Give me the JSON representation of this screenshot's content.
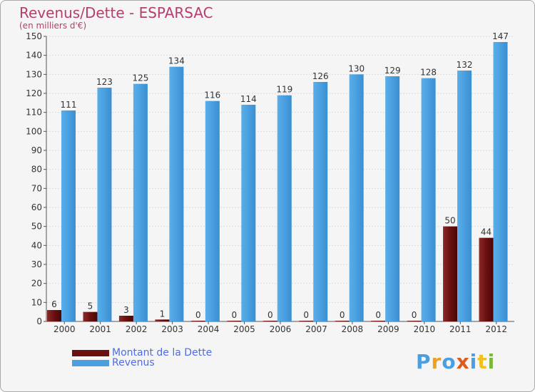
{
  "chart_data": {
    "type": "bar",
    "title": "Revenus/Dette - ESPARSAC",
    "subtitle": "(en milliers d'€)",
    "categories": [
      "2000",
      "2001",
      "2002",
      "2003",
      "2004",
      "2005",
      "2006",
      "2007",
      "2008",
      "2009",
      "2010",
      "2011",
      "2012"
    ],
    "series": [
      {
        "name": "Montant de la Dette",
        "values": [
          6,
          5,
          3,
          1,
          0,
          0,
          0,
          0,
          0,
          0,
          0,
          50,
          44
        ],
        "color": "#7a1c1c"
      },
      {
        "name": "Revenus",
        "values": [
          111,
          123,
          125,
          134,
          116,
          114,
          119,
          126,
          130,
          129,
          128,
          132,
          147
        ],
        "color": "#4a9fe0"
      }
    ],
    "ylim": [
      0,
      150
    ],
    "yticks": [
      0,
      10,
      20,
      30,
      40,
      50,
      60,
      70,
      80,
      90,
      100,
      110,
      120,
      130,
      140,
      150
    ],
    "grid": true,
    "legend_position": "bottom-left"
  },
  "logo": {
    "letters": [
      "P",
      "r",
      "o",
      "x",
      "i",
      "t",
      "i"
    ],
    "colors": [
      "#4a9fe0",
      "#f0a020",
      "#4a9fe0",
      "#e05a20",
      "#4a9fe0",
      "#f0c020",
      "#7ab83a"
    ]
  }
}
